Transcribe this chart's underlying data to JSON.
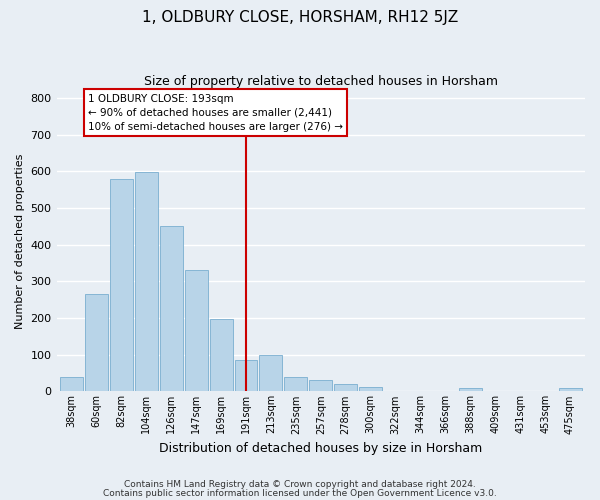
{
  "title": "1, OLDBURY CLOSE, HORSHAM, RH12 5JZ",
  "subtitle": "Size of property relative to detached houses in Horsham",
  "xlabel": "Distribution of detached houses by size in Horsham",
  "ylabel": "Number of detached properties",
  "bar_labels": [
    "38sqm",
    "60sqm",
    "82sqm",
    "104sqm",
    "126sqm",
    "147sqm",
    "169sqm",
    "191sqm",
    "213sqm",
    "235sqm",
    "257sqm",
    "278sqm",
    "300sqm",
    "322sqm",
    "344sqm",
    "366sqm",
    "388sqm",
    "409sqm",
    "431sqm",
    "453sqm",
    "475sqm"
  ],
  "bar_values": [
    40,
    265,
    580,
    597,
    450,
    332,
    198,
    85,
    100,
    38,
    32,
    20,
    12,
    0,
    0,
    0,
    8,
    0,
    0,
    0,
    8
  ],
  "bar_color": "#b8d4e8",
  "bar_edge_color": "#7aaed0",
  "marker_index": 7,
  "marker_color": "#cc0000",
  "ylim": [
    0,
    820
  ],
  "yticks": [
    0,
    100,
    200,
    300,
    400,
    500,
    600,
    700,
    800
  ],
  "annotation_title": "1 OLDBURY CLOSE: 193sqm",
  "annotation_line1": "← 90% of detached houses are smaller (2,441)",
  "annotation_line2": "10% of semi-detached houses are larger (276) →",
  "annotation_box_color": "#ffffff",
  "annotation_box_edge": "#cc0000",
  "footer_line1": "Contains HM Land Registry data © Crown copyright and database right 2024.",
  "footer_line2": "Contains public sector information licensed under the Open Government Licence v3.0.",
  "background_color": "#e8eef4",
  "grid_color": "#ffffff",
  "title_fontsize": 11,
  "subtitle_fontsize": 9
}
